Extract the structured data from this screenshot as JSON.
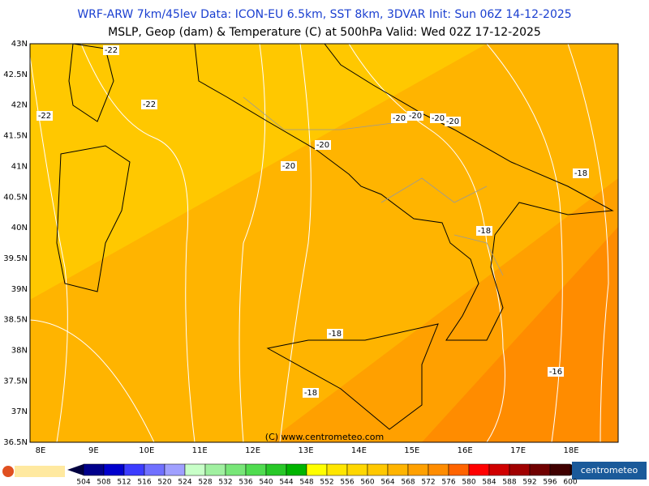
{
  "header": {
    "line1": "WRF-ARW 7km/45lev   Data: ICON-EU 6.5km, SST 8km, 3DVAR   Init: Sun 06Z 14-12-2025",
    "line2": "MSLP, Geop (dam) & Temperature (C) at 500hPa   Valid: Wed 02Z 17-12-2025"
  },
  "lon_labels": [
    "8E",
    "9E",
    "10E",
    "11E",
    "12E",
    "13E",
    "14E",
    "15E",
    "16E",
    "17E",
    "18E"
  ],
  "lat_labels": [
    "43N",
    "42.5N",
    "42N",
    "41.5N",
    "41N",
    "40.5N",
    "40N",
    "39.5N",
    "39N",
    "38.5N",
    "38N",
    "37.5N",
    "37N",
    "36.5N"
  ],
  "contour_labels": [
    "-22",
    "-22",
    "-22",
    "-20",
    "-20",
    "-20",
    "-20",
    "-20",
    "-20",
    "-18",
    "-18",
    "-18",
    "-18",
    "-16"
  ],
  "credit": "(C) www.centrometeo.com",
  "colorbar": {
    "labels": [
      "504",
      "508",
      "512",
      "516",
      "520",
      "524",
      "528",
      "532",
      "536",
      "540",
      "544",
      "548",
      "552",
      "556",
      "560",
      "564",
      "568",
      "572",
      "576",
      "580",
      "584",
      "588",
      "592",
      "596",
      "600"
    ],
    "colors": [
      "#00008b",
      "#0000cd",
      "#3c3cff",
      "#7070ff",
      "#a0a0ff",
      "#c8ffc8",
      "#a0f0a0",
      "#78e678",
      "#50dc50",
      "#28c828",
      "#00b400",
      "#ffff00",
      "#ffe600",
      "#ffd700",
      "#ffc800",
      "#ffb400",
      "#ffa000",
      "#ff8c00",
      "#ff6400",
      "#ff0000",
      "#d00000",
      "#a00000",
      "#700000",
      "#400000"
    ]
  },
  "logo_right": "centrometeo"
}
